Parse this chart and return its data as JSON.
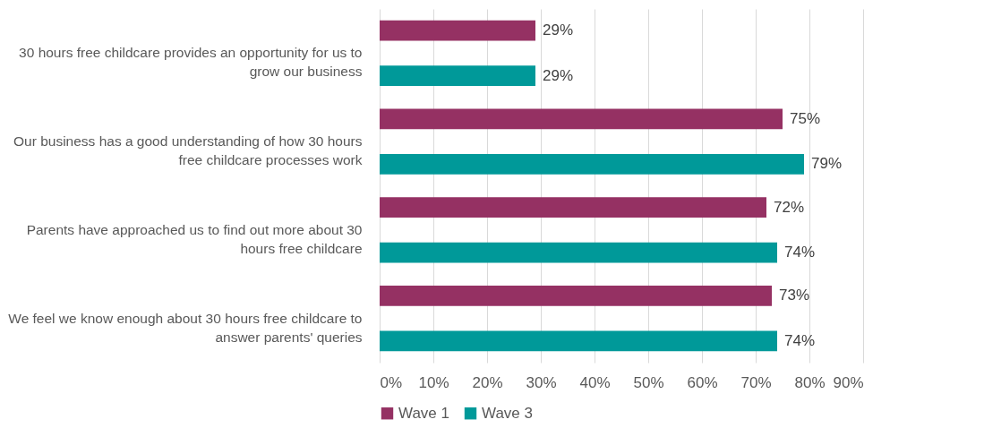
{
  "chart_data": {
    "type": "bar",
    "orientation": "horizontal",
    "categories": [
      "30 hours free childcare provides an opportunity for us to grow our business",
      "Our business has a good understanding of how 30 hours free childcare processes work",
      "Parents have approached us to find out more about 30 hours free childcare",
      "We feel we know enough about 30 hours free childcare to answer parents' queries"
    ],
    "series": [
      {
        "name": "Wave 1",
        "color": "#953163",
        "values": [
          29,
          75,
          72,
          73
        ],
        "value_labels": [
          "29%",
          "75%",
          "72%",
          "73%"
        ]
      },
      {
        "name": "Wave 3",
        "color": "#009999",
        "values": [
          29,
          79,
          74,
          74
        ],
        "value_labels": [
          "29%",
          "79%",
          "74%",
          "74%"
        ]
      }
    ],
    "xlim": [
      0,
      90
    ],
    "xticks": [
      {
        "value": 0,
        "label": "0%"
      },
      {
        "value": 10,
        "label": "10%"
      },
      {
        "value": 20,
        "label": "20%"
      },
      {
        "value": 30,
        "label": "30%"
      },
      {
        "value": 40,
        "label": "40%"
      },
      {
        "value": 50,
        "label": "50%"
      },
      {
        "value": 60,
        "label": "60%"
      },
      {
        "value": 70,
        "label": "70%"
      },
      {
        "value": 80,
        "label": "80%"
      },
      {
        "value": 90,
        "label": "90%"
      }
    ],
    "grid": "x",
    "legend": "bottom"
  }
}
